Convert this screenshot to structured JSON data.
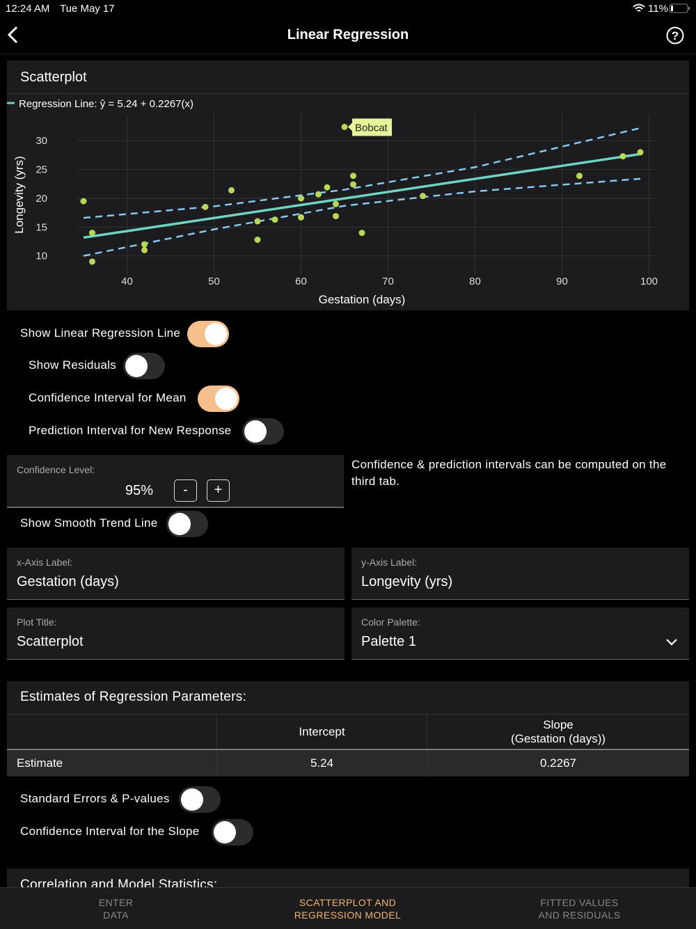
{
  "status_bar": {
    "time": "12:24 AM",
    "date": "Tue May 17",
    "battery": "11%"
  },
  "nav": {
    "title": "Linear Regression"
  },
  "plot_card": {
    "title": "Scatterplot"
  },
  "chart_data": {
    "type": "scatter",
    "legend_label": "Regression Line: ŷ = 5.24 + 0.2267(x)",
    "x_label": "Gestation (days)",
    "y_label": "Longevity (yrs)",
    "x": [
      35,
      36,
      36,
      42,
      42,
      49,
      52,
      55,
      55,
      57,
      60,
      60,
      62,
      63,
      64,
      64,
      65,
      66,
      66,
      67,
      74,
      92,
      97,
      99
    ],
    "y": [
      19.5,
      14,
      9,
      12,
      11,
      18.5,
      21.4,
      12.8,
      16,
      16.3,
      20,
      16.7,
      20.7,
      21.9,
      19,
      16.9,
      32.4,
      23.9,
      22.4,
      14,
      20.4,
      23.9,
      27.3,
      28
    ],
    "point_labels": [
      null,
      null,
      null,
      null,
      null,
      null,
      null,
      null,
      null,
      null,
      null,
      null,
      null,
      null,
      null,
      null,
      "Bobcat",
      null,
      null,
      null,
      null,
      null,
      null,
      null
    ],
    "color": "#b8d65a",
    "line_color": "#6fd3c4",
    "band_color": "#86c9f0",
    "label_color": "#e6f59a",
    "regression": {
      "intercept": 5.24,
      "slope": 0.2267
    },
    "interval": {
      "x": [
        35,
        50,
        65,
        80,
        99
      ],
      "upper": [
        16.6,
        18.6,
        21.5,
        25.4,
        32.2
      ],
      "lower": [
        10,
        14.6,
        18.7,
        21.2,
        23.4
      ]
    },
    "xlim": [
      34.2,
      101
    ],
    "ylim": [
      6.7,
      34.5
    ],
    "xticks": [
      40,
      50,
      60,
      70,
      80,
      90,
      100
    ],
    "yticks": [
      10,
      15,
      20,
      25,
      30
    ],
    "grid": true
  },
  "toggles": [
    {
      "label": "Show Linear Regression Line",
      "on": true
    },
    {
      "label": "Show Residuals",
      "on": false
    },
    {
      "label": "Confidence Interval for Mean",
      "on": true
    },
    {
      "label": "Prediction Interval for New Response",
      "on": false
    },
    {
      "label": "Show Smooth Trend Line",
      "on": false
    }
  ],
  "confidence_level": {
    "label": "Confidence Level:",
    "value": "95%",
    "decrement": "-",
    "increment": "+"
  },
  "interval_note": "Confidence & prediction intervals can be computed on the third tab.",
  "fields": [
    {
      "label": "x-Axis Label:",
      "value": "Gestation (days)"
    },
    {
      "label": "y-Axis Label:",
      "value": "Longevity (yrs)"
    },
    {
      "label": "Plot Title:",
      "value": "Scatterplot"
    },
    {
      "label": "Color Palette:",
      "value": "Palette 1"
    }
  ],
  "estimates": {
    "title": "Estimates of Regression Parameters:",
    "headers": [
      "Intercept",
      "Slope\n(Gestation (days))"
    ],
    "row_label": "Estimate"
  },
  "estimate_toggles": [
    {
      "label": "Standard Errors & P-values",
      "on": false
    },
    {
      "label": "Confidence Interval for the Slope",
      "on": false
    }
  ],
  "statistics": {
    "title": "Correlation and Model Statistics:"
  },
  "tabs": [
    {
      "label": "ENTER\nDATA",
      "active": false
    },
    {
      "label": "SCATTERPLOT AND\nREGRESSION MODEL",
      "active": true
    },
    {
      "label": "FITTED VALUES\nAND RESIDUALS",
      "active": false
    }
  ]
}
